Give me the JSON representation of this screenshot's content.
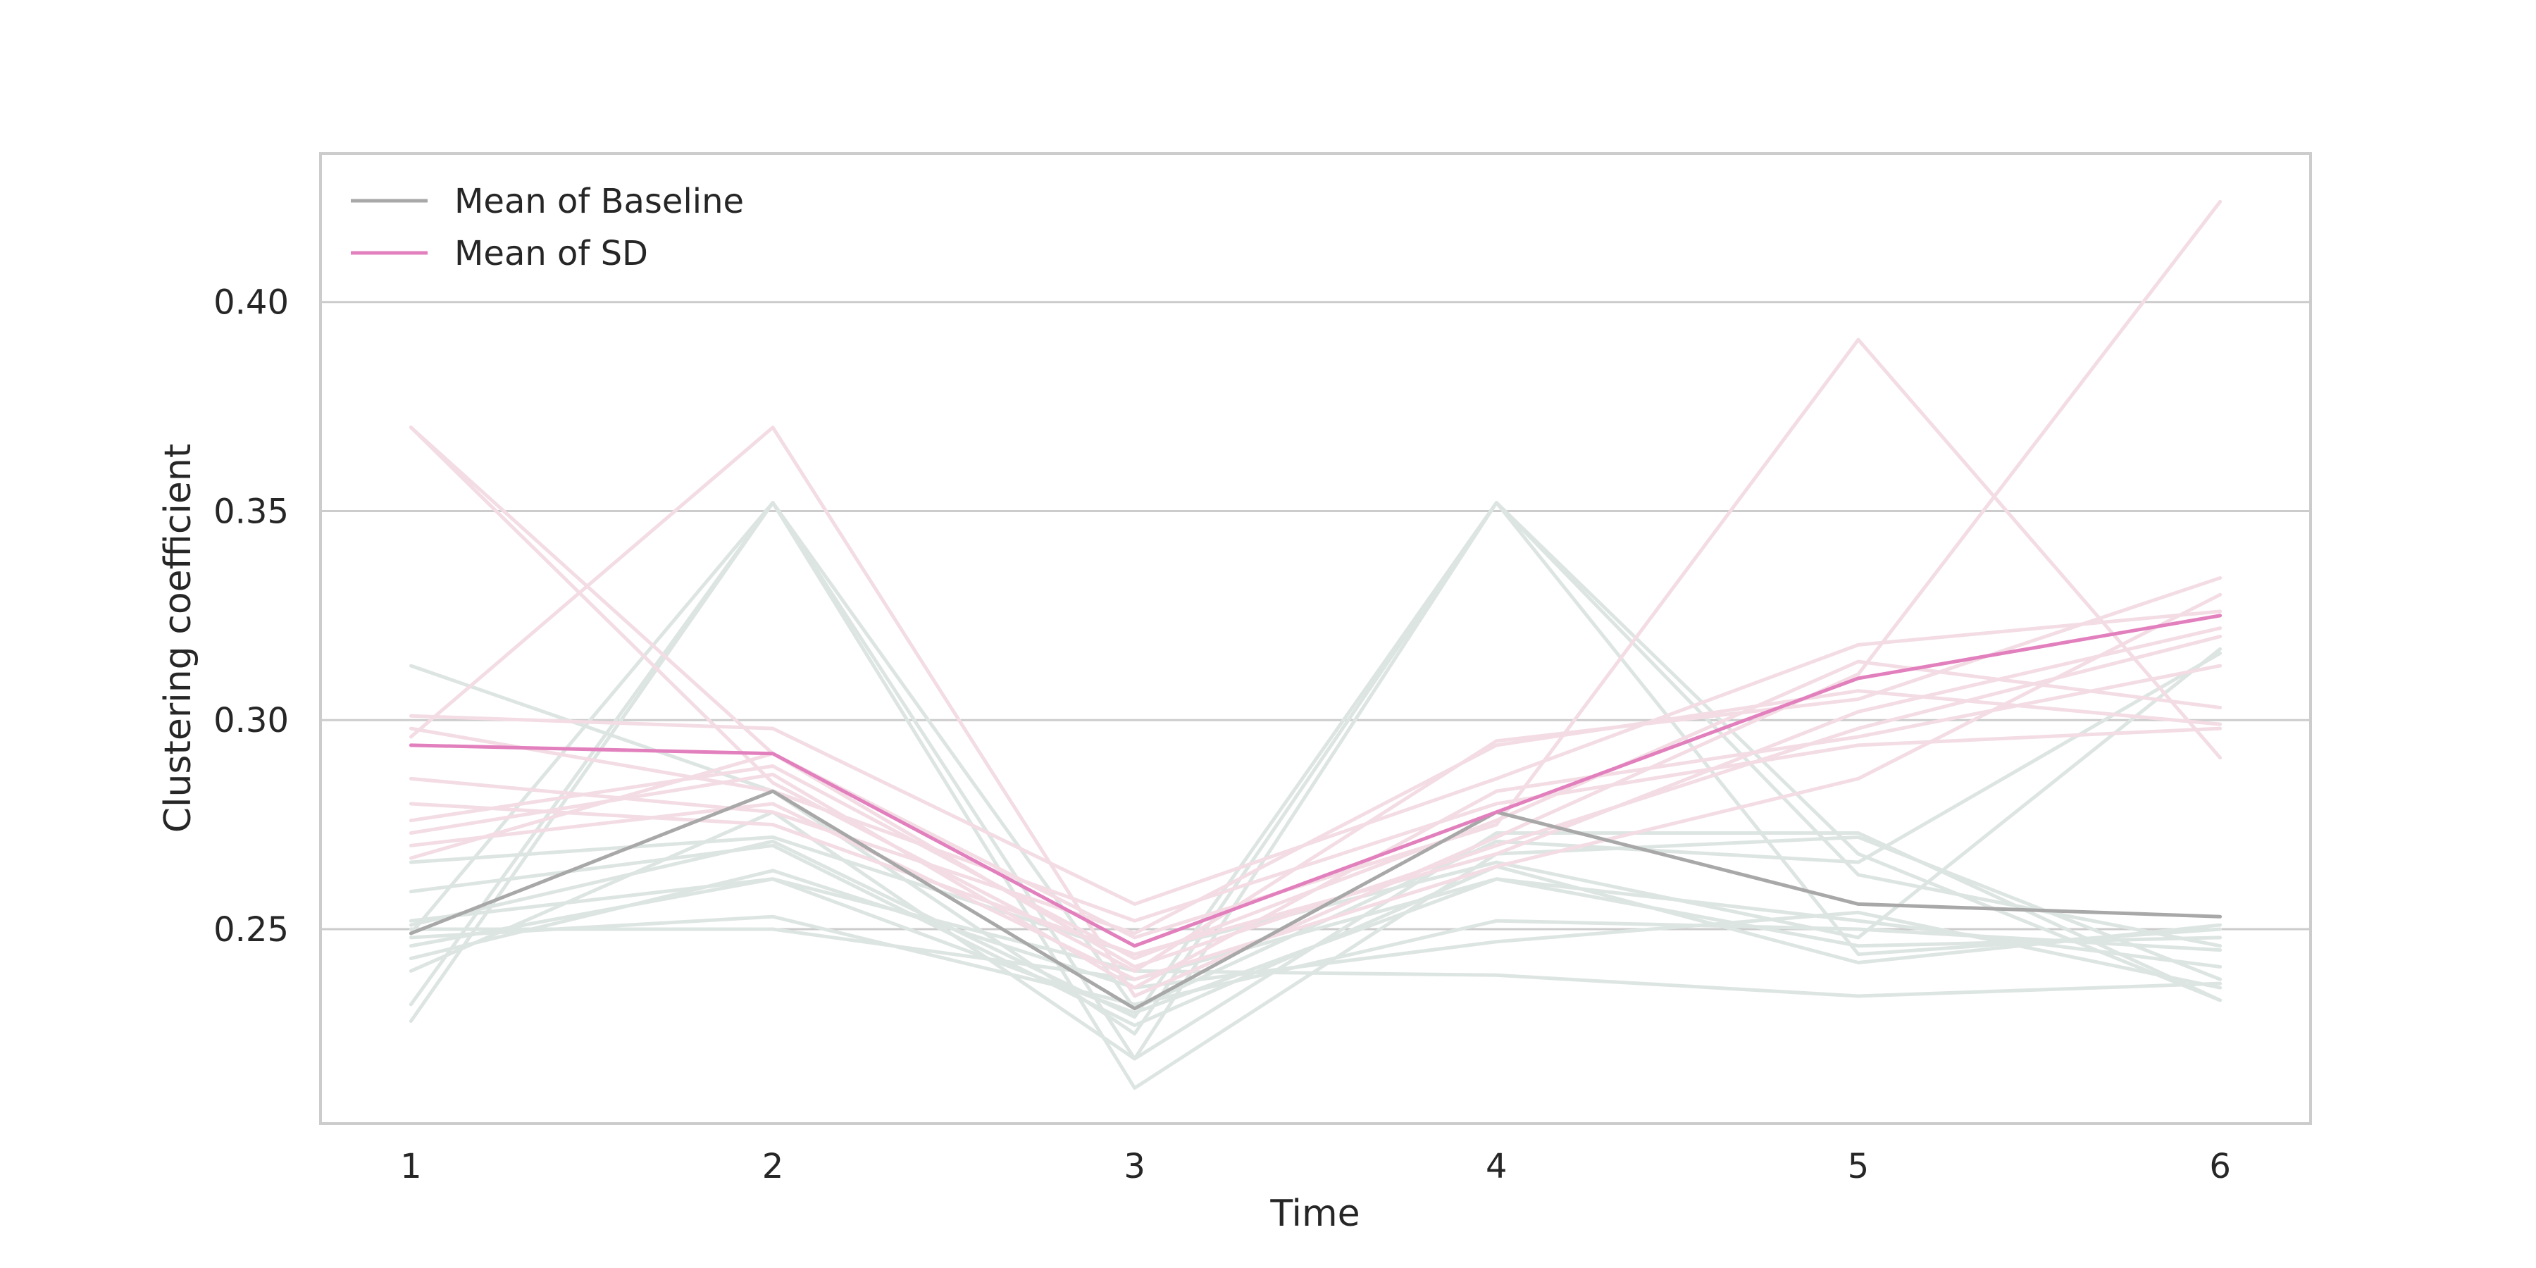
{
  "chart_data": {
    "type": "line",
    "title": "",
    "xlabel": "Time",
    "ylabel": "Clustering coefficient",
    "x": [
      1,
      2,
      3,
      4,
      5,
      6
    ],
    "xlim": [
      0.75,
      6.25
    ],
    "ylim": [
      0.2035,
      0.4355
    ],
    "yticks": [
      0.25,
      0.3,
      0.35,
      0.4
    ],
    "ytick_labels": [
      "0.25",
      "0.30",
      "0.35",
      "0.40"
    ],
    "xtick_labels": [
      "1",
      "2",
      "3",
      "4",
      "5",
      "6"
    ],
    "grid": "horizontal",
    "legend": {
      "placement": "top-left"
    },
    "colors": {
      "baseline_mean": "#a8a8a8",
      "sd_mean": "#e27fbd",
      "baseline_individual": "#dde5e3",
      "sd_individual": "#f3dce4",
      "grid": "#cccccc",
      "frame": "#cccccc"
    },
    "series": [
      {
        "name": "Mean of Baseline",
        "group": "baseline",
        "role": "mean",
        "values": [
          0.249,
          0.283,
          0.231,
          0.278,
          0.256,
          0.253
        ]
      },
      {
        "name": "Mean of SD",
        "group": "sd",
        "role": "mean",
        "values": [
          0.294,
          0.292,
          0.246,
          0.278,
          0.31,
          0.325
        ]
      },
      {
        "group": "baseline",
        "role": "individual",
        "values": [
          0.313,
          0.283,
          0.225,
          0.352,
          0.268,
          0.233
        ]
      },
      {
        "group": "baseline",
        "role": "individual",
        "values": [
          0.249,
          0.352,
          0.231,
          0.271,
          0.266,
          0.316
        ]
      },
      {
        "group": "baseline",
        "role": "individual",
        "values": [
          0.232,
          0.352,
          0.219,
          0.352,
          0.244,
          0.25
        ]
      },
      {
        "group": "baseline",
        "role": "individual",
        "values": [
          0.228,
          0.352,
          0.212,
          0.268,
          0.272,
          0.238
        ]
      },
      {
        "group": "baseline",
        "role": "individual",
        "values": [
          0.251,
          0.271,
          0.229,
          0.352,
          0.263,
          0.246
        ]
      },
      {
        "group": "baseline",
        "role": "individual",
        "values": [
          0.259,
          0.27,
          0.227,
          0.265,
          0.242,
          0.251
        ]
      },
      {
        "group": "baseline",
        "role": "individual",
        "values": [
          0.246,
          0.262,
          0.24,
          0.239,
          0.234,
          0.237
        ]
      },
      {
        "group": "baseline",
        "role": "individual",
        "values": [
          0.243,
          0.264,
          0.236,
          0.247,
          0.254,
          0.236
        ]
      },
      {
        "group": "baseline",
        "role": "individual",
        "values": [
          0.248,
          0.253,
          0.232,
          0.252,
          0.25,
          0.245
        ]
      },
      {
        "group": "baseline",
        "role": "individual",
        "values": [
          0.24,
          0.278,
          0.219,
          0.273,
          0.273,
          0.233
        ]
      },
      {
        "group": "baseline",
        "role": "individual",
        "values": [
          0.25,
          0.25,
          0.238,
          0.262,
          0.246,
          0.248
        ]
      },
      {
        "group": "baseline",
        "role": "individual",
        "values": [
          0.266,
          0.272,
          0.244,
          0.266,
          0.248,
          0.317
        ]
      },
      {
        "group": "baseline",
        "role": "individual",
        "values": [
          0.252,
          0.262,
          0.23,
          0.262,
          0.252,
          0.241
        ]
      },
      {
        "group": "sd",
        "role": "individual",
        "values": [
          0.37,
          0.292,
          0.248,
          0.275,
          0.391,
          0.291
        ]
      },
      {
        "group": "sd",
        "role": "individual",
        "values": [
          0.37,
          0.285,
          0.24,
          0.295,
          0.305,
          0.334
        ]
      },
      {
        "group": "sd",
        "role": "individual",
        "values": [
          0.296,
          0.37,
          0.234,
          0.272,
          0.311,
          0.424
        ]
      },
      {
        "group": "sd",
        "role": "individual",
        "values": [
          0.301,
          0.298,
          0.256,
          0.286,
          0.318,
          0.326
        ]
      },
      {
        "group": "sd",
        "role": "individual",
        "values": [
          0.286,
          0.278,
          0.249,
          0.294,
          0.307,
          0.299
        ]
      },
      {
        "group": "sd",
        "role": "individual",
        "values": [
          0.276,
          0.289,
          0.243,
          0.276,
          0.314,
          0.303
        ]
      },
      {
        "group": "sd",
        "role": "individual",
        "values": [
          0.27,
          0.28,
          0.238,
          0.265,
          0.286,
          0.33
        ]
      },
      {
        "group": "sd",
        "role": "individual",
        "values": [
          0.267,
          0.292,
          0.241,
          0.27,
          0.298,
          0.32
        ]
      },
      {
        "group": "sd",
        "role": "individual",
        "values": [
          0.273,
          0.287,
          0.236,
          0.283,
          0.296,
          0.313
        ]
      },
      {
        "group": "sd",
        "role": "individual",
        "values": [
          0.28,
          0.275,
          0.244,
          0.268,
          0.302,
          0.322
        ]
      },
      {
        "group": "sd",
        "role": "individual",
        "values": [
          0.298,
          0.283,
          0.252,
          0.28,
          0.294,
          0.298
        ]
      }
    ]
  }
}
